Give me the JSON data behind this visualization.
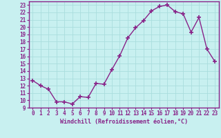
{
  "x": [
    0,
    1,
    2,
    3,
    4,
    5,
    6,
    7,
    8,
    9,
    10,
    11,
    12,
    13,
    14,
    15,
    16,
    17,
    18,
    19,
    20,
    21,
    22,
    23
  ],
  "y": [
    12.7,
    12.0,
    11.5,
    9.8,
    9.8,
    9.5,
    10.5,
    10.4,
    12.3,
    12.2,
    14.2,
    16.1,
    18.5,
    19.9,
    20.9,
    22.2,
    22.8,
    23.0,
    22.1,
    21.8,
    19.3,
    21.3,
    17.0,
    15.3
  ],
  "line_color": "#882288",
  "marker": "+",
  "marker_size": 4,
  "marker_linewidth": 1.2,
  "background_color": "#c8f0f0",
  "grid_color": "#aadddd",
  "xlabel": "Windchill (Refroidissement éolien,°C)",
  "xlabel_color": "#882288",
  "tick_color": "#882288",
  "ylim": [
    9,
    23.5
  ],
  "xlim": [
    -0.5,
    23.5
  ],
  "yticks": [
    9,
    10,
    11,
    12,
    13,
    14,
    15,
    16,
    17,
    18,
    19,
    20,
    21,
    22,
    23
  ],
  "xticks": [
    0,
    1,
    2,
    3,
    4,
    5,
    6,
    7,
    8,
    9,
    10,
    11,
    12,
    13,
    14,
    15,
    16,
    17,
    18,
    19,
    20,
    21,
    22,
    23
  ],
  "spine_color": "#882288",
  "label_fontsize": 6.0,
  "tick_fontsize": 5.5,
  "linewidth": 1.0
}
